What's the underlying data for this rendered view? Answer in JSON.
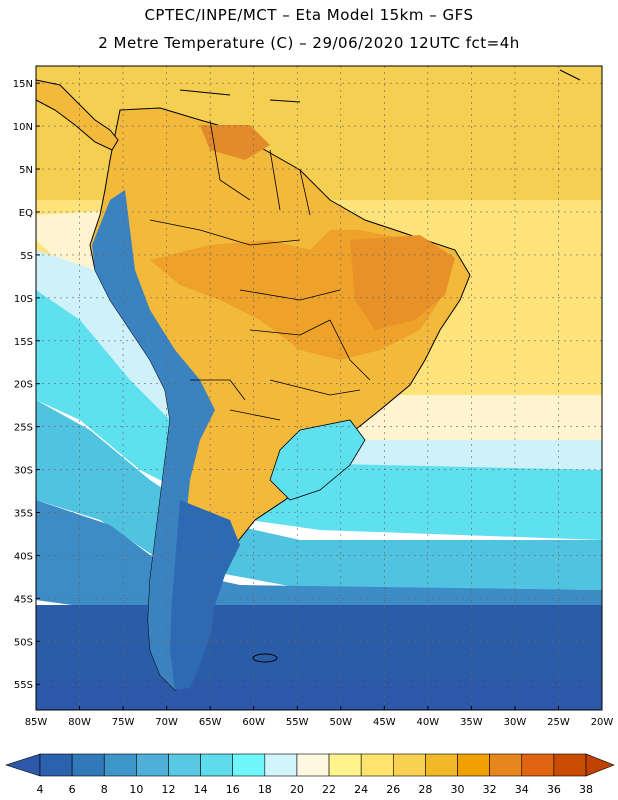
{
  "title_line1": "CPTEC/INPE/MCT –  Eta Model 15km – GFS",
  "title_line2": "2 Metre Temperature (C) – 29/06/2020 12UTC fct=4h",
  "map": {
    "lon_range": [
      -85,
      -20
    ],
    "lat_range": [
      -58,
      17
    ],
    "lat_labels": [
      {
        "text": "15N",
        "lat": 15
      },
      {
        "text": "10N",
        "lat": 10
      },
      {
        "text": "5N",
        "lat": 5
      },
      {
        "text": "EQ",
        "lat": 0
      },
      {
        "text": "5S",
        "lat": -5
      },
      {
        "text": "10S",
        "lat": -10
      },
      {
        "text": "15S",
        "lat": -15
      },
      {
        "text": "20S",
        "lat": -20
      },
      {
        "text": "25S",
        "lat": -25
      },
      {
        "text": "30S",
        "lat": -30
      },
      {
        "text": "35S",
        "lat": -35
      },
      {
        "text": "40S",
        "lat": -40
      },
      {
        "text": "45S",
        "lat": -45
      },
      {
        "text": "50S",
        "lat": -50
      },
      {
        "text": "55S",
        "lat": -55
      }
    ],
    "lon_labels": [
      {
        "text": "85W",
        "lon": -85
      },
      {
        "text": "80W",
        "lon": -80
      },
      {
        "text": "75W",
        "lon": -75
      },
      {
        "text": "70W",
        "lon": -70
      },
      {
        "text": "65W",
        "lon": -65
      },
      {
        "text": "60W",
        "lon": -60
      },
      {
        "text": "55W",
        "lon": -55
      },
      {
        "text": "50W",
        "lon": -50
      },
      {
        "text": "45W",
        "lon": -45
      },
      {
        "text": "40W",
        "lon": -40
      },
      {
        "text": "35W",
        "lon": -35
      },
      {
        "text": "30W",
        "lon": -30
      },
      {
        "text": "25W",
        "lon": -25
      },
      {
        "text": "20W",
        "lon": -20
      }
    ]
  },
  "legend": {
    "values": [
      "4",
      "6",
      "8",
      "10",
      "12",
      "14",
      "16",
      "18",
      "20",
      "22",
      "24",
      "26",
      "28",
      "30",
      "32",
      "34",
      "36",
      "38"
    ],
    "colors": [
      "#2a62ad",
      "#3179b8",
      "#3f96c8",
      "#4eb0d8",
      "#59c8e3",
      "#5fdcec",
      "#6ff6fb",
      "#d2f4fb",
      "#fff8e1",
      "#fff38e",
      "#fde46c",
      "#f8d152",
      "#f1b927",
      "#f0a000",
      "#e8861e",
      "#e06412",
      "#c94c00"
    ],
    "under_color": "#2d57a8",
    "over_color": "#c14200"
  },
  "regions": {
    "ocean_warm_north": "#f5cf52",
    "ocean_mid": "#fde37a",
    "ocean_pale": "#fff4cf",
    "ocean_cold_1": "#cff2fa",
    "ocean_cold_2": "#5fe0ef",
    "ocean_cold_3": "#50c3e1",
    "ocean_cold_4": "#3d8cc5",
    "ocean_cold_5": "#2b5ca8",
    "land_hot": "#eea22a",
    "land_warm": "#f3b93a",
    "andes_cold": "#3a82c0",
    "south_cold": "#2d6ab3"
  }
}
